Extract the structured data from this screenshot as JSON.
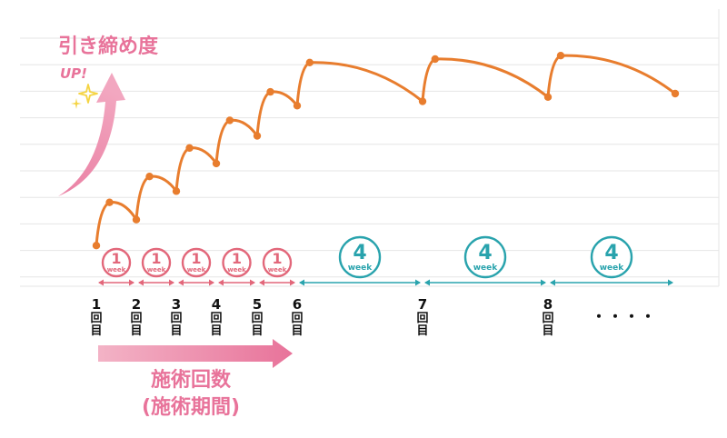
{
  "chart_data": {
    "type": "line",
    "series_color": "#e87d2e",
    "grid": true,
    "sessions": [
      {
        "label": "1",
        "suffix": "回目"
      },
      {
        "label": "2",
        "suffix": "回目"
      },
      {
        "label": "3",
        "suffix": "回目"
      },
      {
        "label": "4",
        "suffix": "回目"
      },
      {
        "label": "5",
        "suffix": "回目"
      },
      {
        "label": "6",
        "suffix": "回目"
      },
      {
        "label": "7",
        "suffix": "回目"
      },
      {
        "label": "8",
        "suffix": "回目"
      }
    ],
    "ellipsis": "・・・・",
    "points": [
      {
        "x": 0,
        "y": 0.4
      },
      {
        "x": 0.33,
        "y": 5.4
      },
      {
        "x": 1,
        "y": 3.4
      },
      {
        "x": 1.33,
        "y": 8.4
      },
      {
        "x": 2,
        "y": 6.7
      },
      {
        "x": 2.33,
        "y": 11.7
      },
      {
        "x": 3,
        "y": 9.9
      },
      {
        "x": 3.33,
        "y": 14.9
      },
      {
        "x": 4,
        "y": 13.1
      },
      {
        "x": 4.33,
        "y": 18.2
      },
      {
        "x": 5,
        "y": 16.6
      },
      {
        "x": 5.1,
        "y": 21.6
      },
      {
        "x": 6,
        "y": 17.1
      },
      {
        "x": 6.1,
        "y": 22.0
      },
      {
        "x": 7,
        "y": 17.6
      },
      {
        "x": 7.1,
        "y": 22.4
      },
      {
        "x": 8,
        "y": 18.0
      }
    ],
    "intervals": [
      {
        "from": 0,
        "to": 1,
        "number": "1",
        "unit": "week",
        "color": "#e2677a"
      },
      {
        "from": 1,
        "to": 2,
        "number": "1",
        "unit": "week",
        "color": "#e2677a"
      },
      {
        "from": 2,
        "to": 3,
        "number": "1",
        "unit": "week",
        "color": "#e2677a"
      },
      {
        "from": 3,
        "to": 4,
        "number": "1",
        "unit": "week",
        "color": "#e2677a"
      },
      {
        "from": 4,
        "to": 5,
        "number": "1",
        "unit": "week",
        "color": "#e2677a"
      },
      {
        "from": 5,
        "to": 6,
        "number": "4",
        "unit": "week",
        "color": "#29a3ad"
      },
      {
        "from": 6,
        "to": 7,
        "number": "4",
        "unit": "week",
        "color": "#29a3ad"
      },
      {
        "from": 7,
        "to": 8,
        "number": "4",
        "unit": "week",
        "color": "#29a3ad"
      }
    ]
  },
  "annotations": {
    "tightness_label": "引き締め度",
    "up_label": "UP!",
    "treatment_count": "施術回数",
    "treatment_period": "(施術期間)"
  },
  "colors": {
    "pink_accent": "#e8739a",
    "arrow_pink": "#ec8fa8",
    "sparkle": "#f5d442",
    "grid": "#e6e6e6",
    "teal": "#29a3ad",
    "red_pink": "#e2677a"
  }
}
